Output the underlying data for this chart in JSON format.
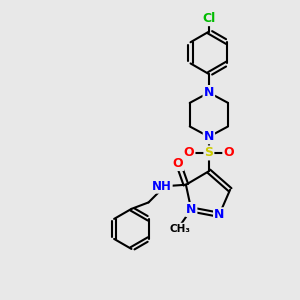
{
  "background_color": "#e8e8e8",
  "bond_color": "#000000",
  "bond_width": 1.5,
  "atom_colors": {
    "N": "#0000ff",
    "O": "#ff0000",
    "S": "#cccc00",
    "Cl": "#00bb00",
    "C": "#000000",
    "H": "#555555"
  },
  "font_size_atoms": 9,
  "title": ""
}
